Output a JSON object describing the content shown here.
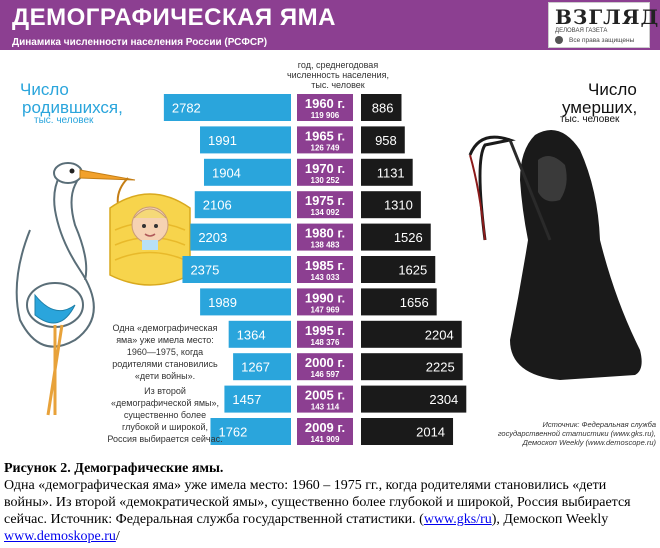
{
  "header": {
    "title": "ДЕМОГРАФИЧЕСКАЯ ЯМА",
    "subtitle": "Динамика численности населения России (РСФСР)",
    "brand": "ВЗГЛЯД",
    "brand_tagline": "ДЕЛОВАЯ ГАЗЕТА",
    "brand_rights": "Все права защищены",
    "brand_color": "#8c3f91"
  },
  "labels": {
    "center_header": [
      "год, среднегодовая",
      "численность населения,",
      "тыс. человек"
    ],
    "left": [
      "Число",
      "родившихся,",
      "тыс. человек"
    ],
    "right": [
      "Число",
      "умерших,",
      "тыс. человек"
    ]
  },
  "notes": {
    "note1": [
      "Одна «демографическая",
      "яма» уже имела место:",
      "1960—1975, когда",
      "родителями становились",
      "«дети войны»."
    ],
    "note2": [
      "Из второй",
      "«демографической ямы»,",
      "существенно более",
      "глубокой и широкой,",
      "Россия выбирается сейчас."
    ]
  },
  "source": [
    "Источник: Федеральная служба",
    "государственной статистики (www.gks.ru),",
    "Демоскоп Weekly (www.demoscope.ru)"
  ],
  "colors": {
    "births": "#2aa5dc",
    "year": "#8c3f91",
    "deaths": "#1a1a1a",
    "accent_text": "#2aa5dc"
  },
  "chart_data": {
    "type": "bar",
    "categories": [
      "1960 г.",
      "1965 г.",
      "1970 г.",
      "1975 г.",
      "1980 г.",
      "1985 г.",
      "1990 г.",
      "1995 г.",
      "2000 г.",
      "2005 г.",
      "2009 г."
    ],
    "population": [
      "119 906",
      "126 749",
      "130 252",
      "134 092",
      "138 483",
      "143 033",
      "147 969",
      "148 376",
      "146 597",
      "143 114",
      "141 909"
    ],
    "series": [
      {
        "name": "Число родившихся, тыс. человек",
        "values": [
          2782,
          1991,
          1904,
          2106,
          2203,
          2375,
          1989,
          1364,
          1267,
          1457,
          1762
        ]
      },
      {
        "name": "Число умерших, тыс. человек",
        "values": [
          886,
          958,
          1131,
          1310,
          1526,
          1625,
          1656,
          2204,
          2225,
          2304,
          2014
        ]
      }
    ]
  },
  "caption": {
    "title": "Рисунок 2. Демографические ямы.",
    "body": "Одна «демографическая яма» уже имела место: 1960 – 1975 гг., когда родителями становились «дети войны». Из второй «демократической ямы», существенно более глубокой и широкой, Россия выбирается сейчас. Источник: Федеральная служба государственной статистики. (",
    "link1": "www.gks/ru",
    "middle": "), Демоскоп Weekly ",
    "link2": "www.demoskope.ru",
    "end": "/"
  }
}
